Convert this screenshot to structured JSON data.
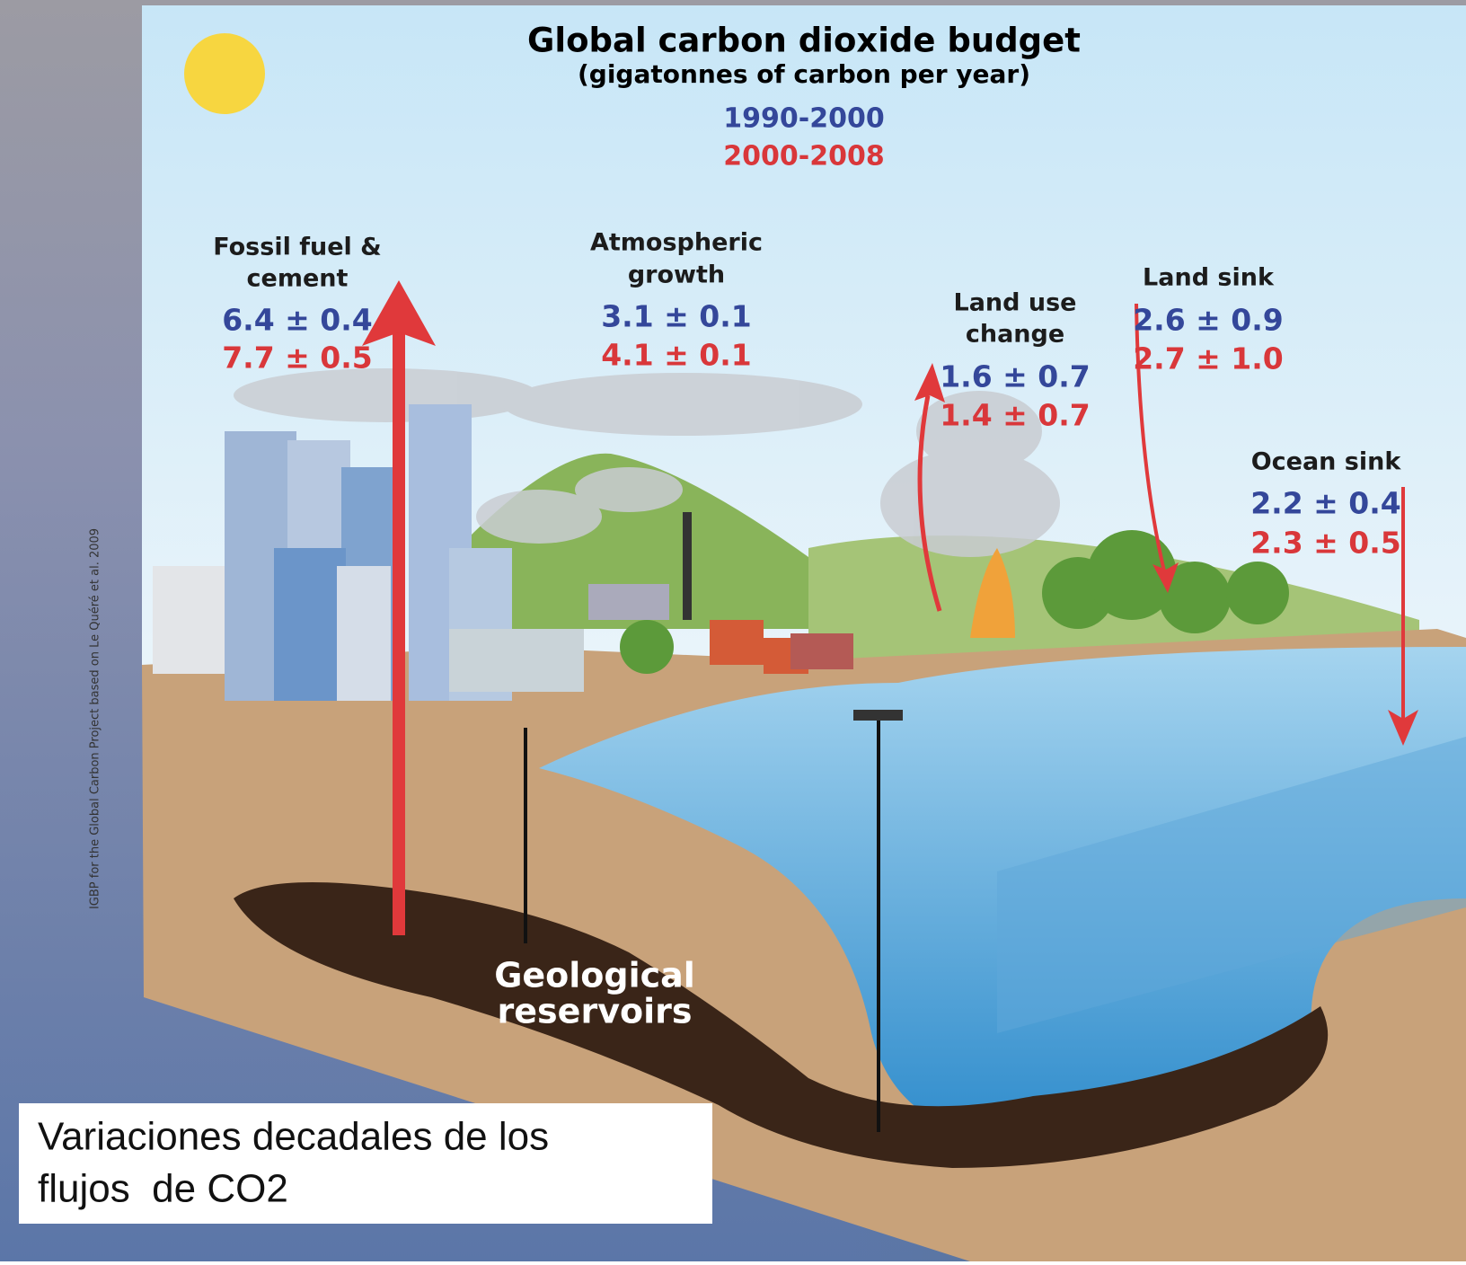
{
  "title": "Global carbon dioxide budget",
  "subtitle": "(gigatonnes of carbon per year)",
  "periods": [
    "1990-2000",
    "2000-2008"
  ],
  "fluxes": [
    {
      "label": [
        "Fossil fuel &",
        "cement"
      ],
      "values": [
        "6.4 ± 0.4",
        "7.7 ± 0.5"
      ]
    },
    {
      "label": [
        "Atmospheric",
        "growth"
      ],
      "values": [
        "3.1 ± 0.1",
        "4.1 ± 0.1"
      ]
    },
    {
      "label": [
        "Land use",
        "change"
      ],
      "values": [
        "1.6 ± 0.7",
        "1.4 ± 0.7"
      ]
    },
    {
      "label": [
        "Land sink"
      ],
      "values": [
        "2.6 ± 0.9",
        "2.7 ± 1.0"
      ]
    },
    {
      "label": [
        "Ocean sink"
      ],
      "values": [
        "2.2 ± 0.4",
        "2.3 ± 0.5"
      ]
    }
  ],
  "reservoir": [
    "Geological",
    "reservoirs"
  ],
  "credit": "IGBP for the Global Carbon Project based on Le Quéré et al. 2009",
  "caption": [
    "Variaciones decadales de los",
    "flujos  de CO2"
  ]
}
